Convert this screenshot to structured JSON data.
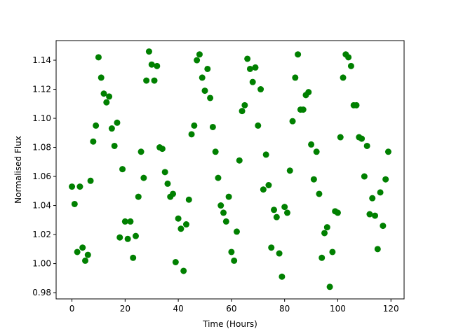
{
  "chart_data": {
    "type": "scatter",
    "xlabel": "Time (Hours)",
    "ylabel": "Normalised Flux",
    "color": "#008000",
    "x": [
      0,
      1,
      2,
      3,
      4,
      5,
      6,
      7,
      8,
      9,
      10,
      11,
      12,
      13,
      14,
      15,
      16,
      17,
      18,
      19,
      20,
      21,
      22,
      23,
      24,
      25,
      26,
      27,
      28,
      29,
      30,
      31,
      32,
      33,
      34,
      35,
      36,
      37,
      38,
      39,
      40,
      41,
      42,
      43,
      44,
      45,
      46,
      47,
      48,
      49,
      50,
      51,
      52,
      53,
      54,
      55,
      56,
      57,
      58,
      59,
      60,
      61,
      62,
      63,
      64,
      65,
      66,
      67,
      68,
      69,
      70,
      71,
      72,
      73,
      74,
      75,
      76,
      77,
      78,
      79,
      80,
      81,
      82,
      83,
      84,
      85,
      86,
      87,
      88,
      89,
      90,
      91,
      92,
      93,
      94,
      95,
      96,
      97,
      98,
      99,
      100,
      101,
      102,
      103,
      104,
      105,
      106,
      107,
      108,
      109,
      110,
      111,
      112,
      113,
      114,
      115,
      116,
      117,
      118,
      119
    ],
    "values": [
      1.053,
      1.041,
      1.008,
      1.053,
      1.011,
      1.002,
      1.006,
      1.057,
      1.084,
      1.095,
      1.142,
      1.128,
      1.117,
      1.111,
      1.115,
      1.093,
      1.081,
      1.097,
      1.018,
      1.065,
      1.029,
      1.017,
      1.029,
      1.004,
      1.019,
      1.046,
      1.077,
      1.059,
      1.126,
      1.146,
      1.137,
      1.126,
      1.136,
      1.08,
      1.079,
      1.063,
      1.055,
      1.046,
      1.048,
      1.001,
      1.031,
      1.024,
      0.995,
      1.027,
      1.044,
      1.089,
      1.095,
      1.14,
      1.144,
      1.128,
      1.119,
      1.134,
      1.114,
      1.094,
      1.077,
      1.059,
      1.04,
      1.035,
      1.029,
      1.046,
      1.008,
      1.002,
      1.022,
      1.071,
      1.105,
      1.109,
      1.141,
      1.134,
      1.125,
      1.135,
      1.095,
      1.12,
      1.051,
      1.075,
      1.054,
      1.011,
      1.037,
      1.032,
      1.007,
      0.991,
      1.039,
      1.035,
      1.064,
      1.098,
      1.128,
      1.144,
      1.106,
      1.106,
      1.116,
      1.118,
      1.082,
      1.058,
      1.077,
      1.048,
      1.004,
      1.021,
      1.025,
      0.984,
      1.008,
      1.036,
      1.035,
      1.087,
      1.128,
      1.144,
      1.142,
      1.136,
      1.109,
      1.109,
      1.087,
      1.086,
      1.06,
      1.081,
      1.034,
      1.045,
      1.033,
      1.01,
      1.049,
      1.026,
      1.058,
      1.077
    ],
    "xlim": [
      -5.95,
      124.95
    ],
    "ylim": [
      0.9757,
      1.1535
    ],
    "xticks": [
      0,
      20,
      40,
      60,
      80,
      100,
      120
    ],
    "yticks": [
      0.98,
      {
        "value": 1.0,
        "label": "1.00"
      },
      1.02,
      1.04,
      1.06,
      1.08,
      {
        "value": 1.1,
        "label": "1.10"
      },
      1.12,
      1.14
    ]
  }
}
